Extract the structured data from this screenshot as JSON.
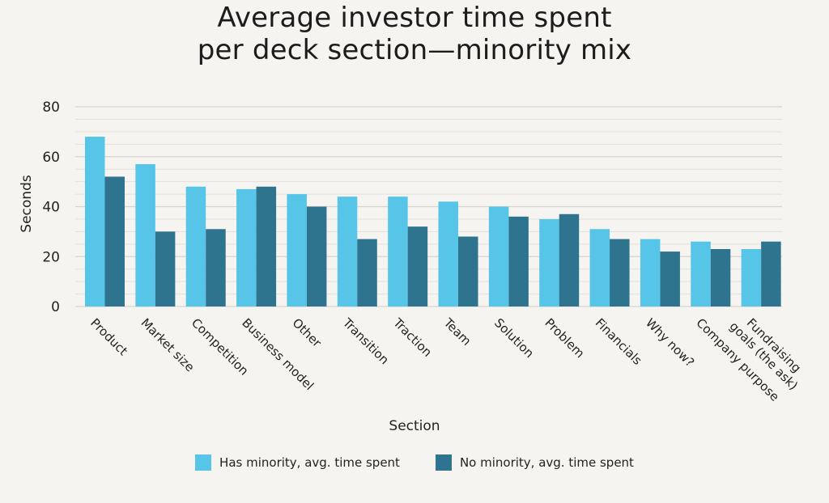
{
  "chart_data": {
    "type": "bar",
    "title_lines": [
      "Average investor time spent",
      "per deck section—minority mix"
    ],
    "xlabel": "Section",
    "ylabel": "Seconds",
    "ylim": [
      0,
      80
    ],
    "y_ticks": [
      0,
      20,
      40,
      60,
      80
    ],
    "grid": true,
    "legend_position": "bottom",
    "categories": [
      [
        "Product"
      ],
      [
        "Market size"
      ],
      [
        "Competition"
      ],
      [
        "Business model"
      ],
      [
        "Other"
      ],
      [
        "Transition"
      ],
      [
        "Traction"
      ],
      [
        "Team"
      ],
      [
        "Solution"
      ],
      [
        "Problem"
      ],
      [
        "Financials"
      ],
      [
        "Why now?"
      ],
      [
        "Company purpose"
      ],
      [
        "Fundraising",
        "goals (the ask)"
      ]
    ],
    "series": [
      {
        "name": "Has minority, avg. time spent",
        "color": "#56c5e8",
        "values": [
          68,
          57,
          48,
          47,
          45,
          44,
          44,
          42,
          40,
          35,
          31,
          27,
          26,
          23
        ]
      },
      {
        "name": "No minority, avg. time spent",
        "color": "#2e748e",
        "values": [
          52,
          30,
          31,
          48,
          40,
          27,
          32,
          28,
          36,
          37,
          27,
          22,
          23,
          26
        ]
      }
    ]
  }
}
